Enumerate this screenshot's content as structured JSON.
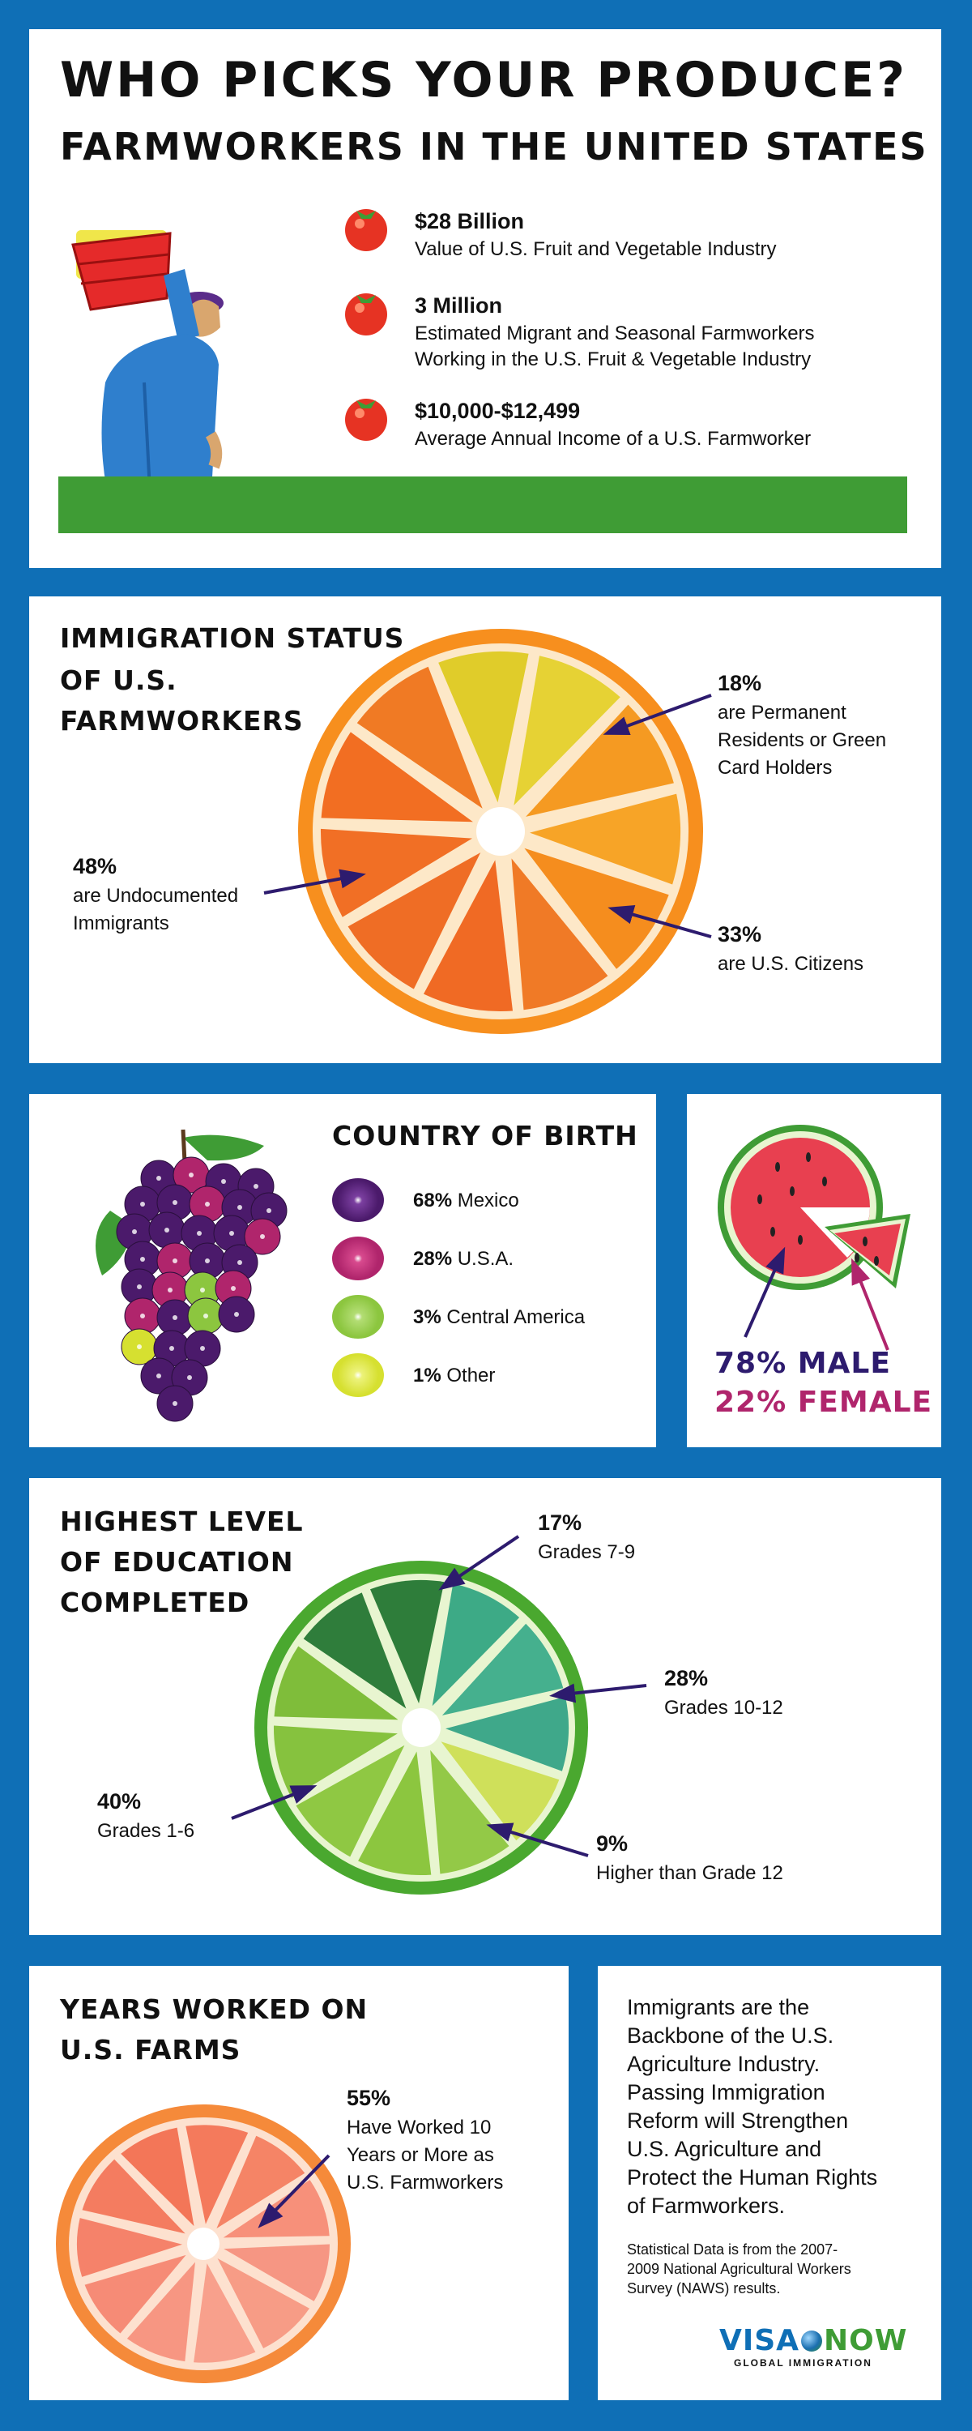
{
  "header": {
    "title": "WHO PICKS YOUR PRODUCE?",
    "subtitle": "FARMWORKERS IN THE UNITED STATES"
  },
  "intro_stats": [
    {
      "value": "$28 Billion",
      "label": "Value of U.S. Fruit and Vegetable Industry"
    },
    {
      "value": "3 Million",
      "label_line1": "Estimated Migrant and Seasonal Farmworkers",
      "label_line2": "Working in the U.S. Fruit & Vegetable Industry"
    },
    {
      "value": "$10,000-$12,499",
      "label": "Average Annual Income of a U.S. Farmworker"
    }
  ],
  "immigration": {
    "title_line1": "IMMIGRATION STATUS",
    "title_line2": "OF U.S.",
    "title_line3": "FARMWORKERS",
    "items": [
      {
        "pct": "48%",
        "line1": "are Undocumented",
        "line2": "Immigrants"
      },
      {
        "pct": "18%",
        "line1": "are Permanent",
        "line2": "Residents or Green",
        "line3": "Card Holders"
      },
      {
        "pct": "33%",
        "line1": "are U.S. Citizens"
      }
    ]
  },
  "birth": {
    "title": "COUNTRY OF BIRTH",
    "items": [
      {
        "pct": "68%",
        "label": "Mexico",
        "color": "#4b1a6b"
      },
      {
        "pct": "28%",
        "label": "U.S.A.",
        "color": "#b0256c"
      },
      {
        "pct": "3%",
        "label": "Central America",
        "color": "#8cc63f"
      },
      {
        "pct": "1%",
        "label": "Other",
        "color": "#d6e030"
      }
    ]
  },
  "gender": {
    "male": "78% MALE",
    "female": "22% FEMALE",
    "male_color": "#2d1b6e",
    "female_color": "#b0256c"
  },
  "education": {
    "title_line1": "HIGHEST LEVEL",
    "title_line2": "OF EDUCATION",
    "title_line3": "COMPLETED",
    "items": [
      {
        "pct": "17%",
        "label": "Grades 7-9"
      },
      {
        "pct": "28%",
        "label": "Grades 10-12"
      },
      {
        "pct": "40%",
        "label": "Grades 1-6"
      },
      {
        "pct": "9%",
        "label": "Higher than Grade 12"
      }
    ]
  },
  "years": {
    "title_line1": "YEARS WORKED ON",
    "title_line2": "U.S. FARMS",
    "pct": "55%",
    "line1": "Have Worked 10",
    "line2": "Years or More as",
    "line3": "U.S. Farmworkers"
  },
  "message": {
    "lines": [
      "Immigrants are the",
      "Backbone of the U.S.",
      "Agriculture Industry.",
      "Passing Immigration",
      "Reform will Strengthen",
      "U.S. Agriculture and",
      "Protect the Human Rights",
      "of Farmworkers."
    ],
    "source_lines": [
      "Statistical Data is from the 2007-",
      "2009 National Agricultural Workers",
      "Survey (NAWS) results."
    ]
  },
  "logo": {
    "name_a": "VISA",
    "name_b": "NOW",
    "tagline": "GLOBAL IMMIGRATION"
  },
  "colors": {
    "background": "#0f6fb6",
    "arrow": "#2d1b6e",
    "grass": "#3f9c35"
  }
}
